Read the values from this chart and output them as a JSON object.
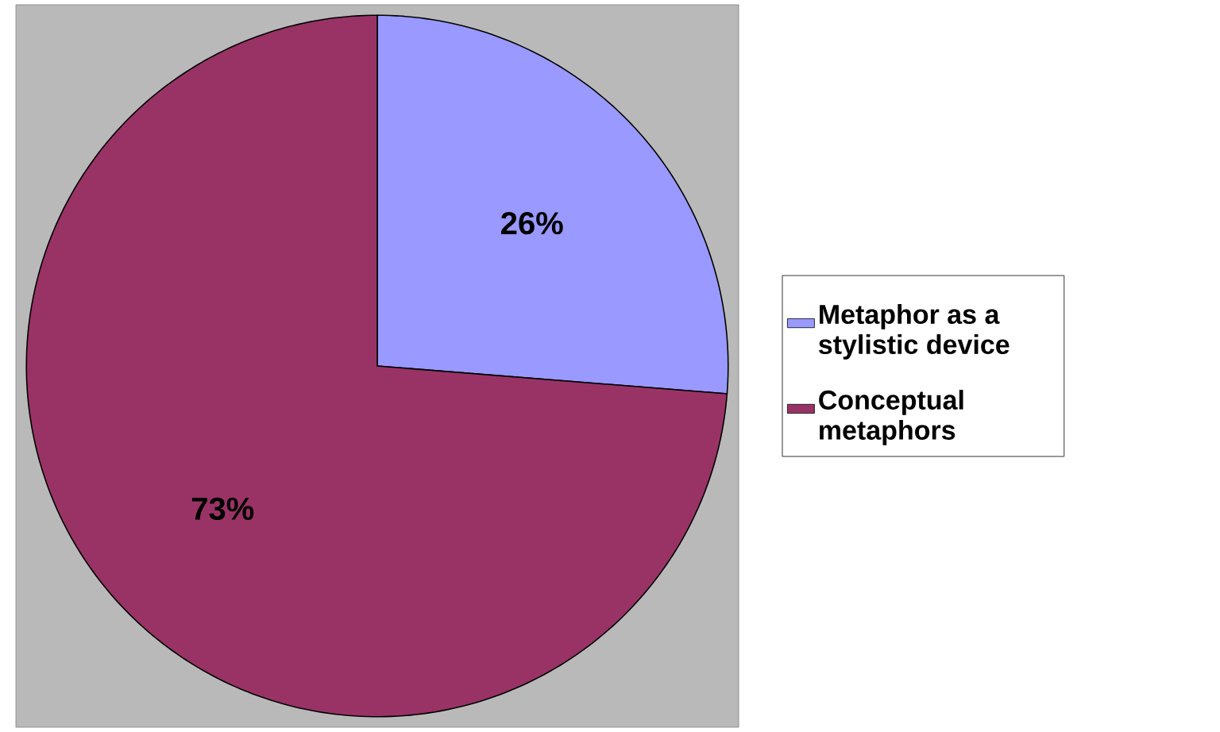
{
  "chart_data": {
    "type": "pie",
    "categories": [
      "Metaphor as a stylistic device",
      "Conceptual metaphors"
    ],
    "values": [
      26,
      73
    ],
    "colors": [
      "#9999ff",
      "#993366"
    ],
    "value_labels": [
      "26%",
      "73%"
    ],
    "legend": "right"
  }
}
